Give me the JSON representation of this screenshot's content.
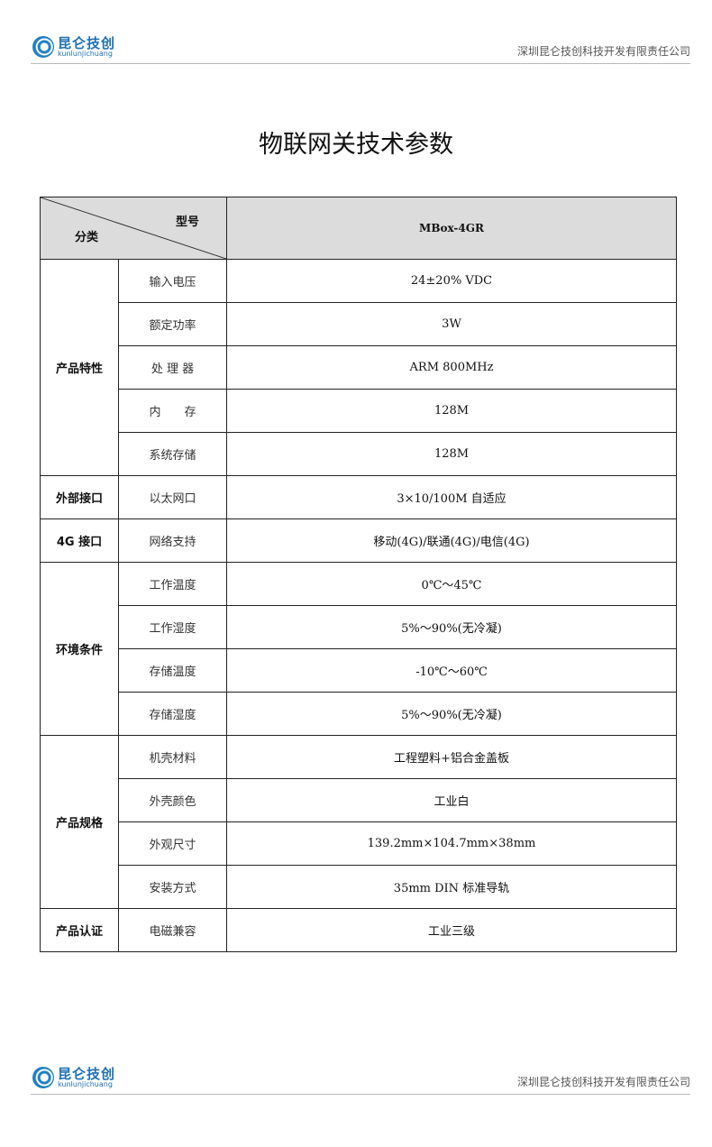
{
  "header": {
    "logo_cn": "昆仑技创",
    "logo_en": "kunlunjichuang",
    "company": "深圳昆仑技创科技开发有限责任公司"
  },
  "title": "物联网关技术参数",
  "table": {
    "corner_model": "型号",
    "corner_category": "分类",
    "model": "MBox-4GR",
    "groups": [
      {
        "category": "产品特性",
        "rows": [
          [
            "输入电压",
            "24±20% VDC"
          ],
          [
            "额定功率",
            "3W"
          ],
          [
            "处 理 器",
            "ARM 800MHz"
          ],
          [
            "内　　存",
            "128M"
          ],
          [
            "系统存储",
            "128M"
          ]
        ]
      },
      {
        "category": "外部接口",
        "rows": [
          [
            "以太网口",
            "3×10/100M 自适应"
          ]
        ]
      },
      {
        "category": "4G 接口",
        "rows": [
          [
            "网络支持",
            "移动(4G)/联通(4G)/电信(4G)"
          ]
        ]
      },
      {
        "category": "环境条件",
        "rows": [
          [
            "工作温度",
            "0℃～45℃"
          ],
          [
            "工作湿度",
            "5%～90%(无冷凝)"
          ],
          [
            "存储温度",
            "-10℃～60℃"
          ],
          [
            "存储湿度",
            "5%～90%(无冷凝)"
          ]
        ]
      },
      {
        "category": "产品规格",
        "rows": [
          [
            "机壳材料",
            "工程塑料+铝合金盖板"
          ],
          [
            "外壳颜色",
            "工业白"
          ],
          [
            "外观尺寸",
            "139.2mm×104.7mm×38mm"
          ],
          [
            "安装方式",
            "35mm DIN 标准导轨"
          ]
        ]
      },
      {
        "category": "产品认证",
        "rows": [
          [
            "电磁兼容",
            "工业三级"
          ]
        ]
      }
    ]
  },
  "footer": {
    "logo_cn": "昆仑技创",
    "logo_en": "kunlunjichuang",
    "company": "深圳昆仑技创科技开发有限责任公司"
  }
}
